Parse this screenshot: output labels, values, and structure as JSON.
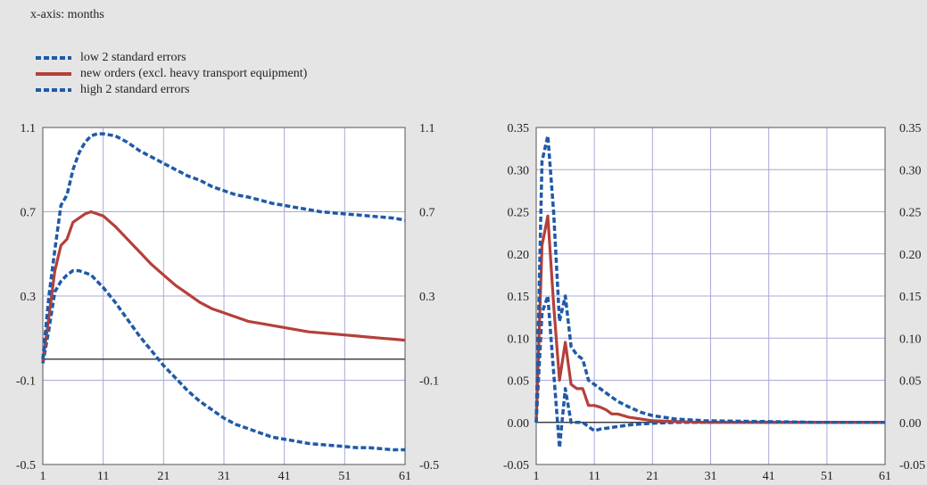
{
  "note": "x-axis: months",
  "legend": [
    {
      "label": "low 2 standard errors",
      "color": "#1f5aa8",
      "style": "dashed"
    },
    {
      "label": "new orders (excl. heavy transport equipment)",
      "color": "#b5403a",
      "style": "solid"
    },
    {
      "label": "high 2 standard errors",
      "color": "#1f5aa8",
      "style": "dashed"
    }
  ],
  "chart_data": [
    {
      "type": "line",
      "xlabel": "",
      "ylabel": "",
      "xlim": [
        1,
        61
      ],
      "ylim": [
        -0.5,
        1.1
      ],
      "xticks": [
        "1",
        "11",
        "21",
        "31",
        "41",
        "51",
        "61"
      ],
      "yticks_left": [
        "1.1",
        "0.7",
        "0.3",
        "-0.1",
        "-0.5"
      ],
      "yticks_right": [
        "1.1",
        "0.7",
        "0.3",
        "-0.1",
        "-0.5"
      ],
      "grid": true,
      "series": [
        {
          "name": "low 2 standard errors",
          "style": "dashed",
          "color": "#1f5aa8",
          "x": [
            1,
            2,
            3,
            4,
            5,
            6,
            7,
            8,
            9,
            10,
            11,
            13,
            15,
            17,
            19,
            21,
            23,
            25,
            27,
            29,
            31,
            33,
            35,
            37,
            39,
            41,
            43,
            45,
            47,
            49,
            51,
            53,
            55,
            57,
            59,
            61
          ],
          "y": [
            -0.02,
            0.14,
            0.32,
            0.37,
            0.4,
            0.42,
            0.42,
            0.41,
            0.4,
            0.37,
            0.34,
            0.27,
            0.19,
            0.11,
            0.04,
            -0.03,
            -0.09,
            -0.15,
            -0.2,
            -0.24,
            -0.28,
            -0.31,
            -0.33,
            -0.35,
            -0.37,
            -0.38,
            -0.39,
            -0.4,
            -0.405,
            -0.41,
            -0.415,
            -0.42,
            -0.42,
            -0.425,
            -0.43,
            -0.43
          ]
        },
        {
          "name": "new orders (excl. heavy transport equipment)",
          "style": "solid",
          "color": "#b5403a",
          "x": [
            1,
            2,
            3,
            4,
            5,
            6,
            7,
            8,
            9,
            10,
            11,
            13,
            15,
            17,
            19,
            21,
            23,
            25,
            27,
            29,
            31,
            33,
            35,
            37,
            39,
            41,
            43,
            45,
            47,
            49,
            51,
            53,
            55,
            57,
            59,
            61
          ],
          "y": [
            -0.01,
            0.2,
            0.42,
            0.54,
            0.57,
            0.65,
            0.67,
            0.69,
            0.7,
            0.69,
            0.68,
            0.63,
            0.57,
            0.51,
            0.45,
            0.4,
            0.35,
            0.31,
            0.27,
            0.24,
            0.22,
            0.2,
            0.18,
            0.17,
            0.16,
            0.15,
            0.14,
            0.13,
            0.125,
            0.12,
            0.115,
            0.11,
            0.105,
            0.1,
            0.095,
            0.09
          ]
        },
        {
          "name": "high 2 standard errors",
          "style": "dashed",
          "color": "#1f5aa8",
          "x": [
            1,
            2,
            3,
            4,
            5,
            6,
            7,
            8,
            9,
            10,
            11,
            13,
            15,
            17,
            19,
            21,
            23,
            25,
            27,
            29,
            31,
            33,
            35,
            37,
            39,
            41,
            43,
            45,
            47,
            49,
            51,
            53,
            55,
            57,
            59,
            61
          ],
          "y": [
            0.0,
            0.3,
            0.52,
            0.73,
            0.78,
            0.9,
            0.98,
            1.03,
            1.06,
            1.07,
            1.07,
            1.06,
            1.03,
            0.99,
            0.96,
            0.93,
            0.9,
            0.87,
            0.85,
            0.82,
            0.8,
            0.78,
            0.77,
            0.755,
            0.74,
            0.73,
            0.72,
            0.71,
            0.7,
            0.695,
            0.69,
            0.685,
            0.68,
            0.675,
            0.67,
            0.66
          ]
        }
      ]
    },
    {
      "type": "line",
      "xlabel": "",
      "ylabel": "",
      "xlim": [
        1,
        61
      ],
      "ylim": [
        -0.05,
        0.35
      ],
      "xticks": [
        "1",
        "11",
        "21",
        "31",
        "41",
        "51",
        "61"
      ],
      "yticks_left": [
        "0.35",
        "0.30",
        "0.25",
        "0.20",
        "0.15",
        "0.10",
        "0.05",
        "0.00",
        "-0.05"
      ],
      "yticks_right": [
        "0.35",
        "0.30",
        "0.25",
        "0.20",
        "0.15",
        "0.10",
        "0.05",
        "0.00",
        "-0.05"
      ],
      "grid": true,
      "series": [
        {
          "name": "low 2 standard errors",
          "style": "dashed",
          "color": "#1f5aa8",
          "x": [
            1,
            2,
            3,
            4,
            5,
            6,
            7,
            8,
            9,
            10,
            11,
            12,
            13,
            15,
            17,
            19,
            21,
            25,
            30,
            40,
            50,
            61
          ],
          "y": [
            0.0,
            0.13,
            0.15,
            0.06,
            -0.03,
            0.04,
            0.0,
            0.0,
            0.0,
            -0.005,
            -0.01,
            -0.008,
            -0.007,
            -0.005,
            -0.003,
            -0.002,
            -0.001,
            0.0,
            0.0,
            0.0,
            0.0,
            0.0
          ]
        },
        {
          "name": "new orders (excl. heavy transport equipment)",
          "style": "solid",
          "color": "#b5403a",
          "x": [
            1,
            2,
            3,
            4,
            5,
            6,
            7,
            8,
            9,
            10,
            11,
            12,
            13,
            14,
            15,
            17,
            19,
            21,
            25,
            30,
            40,
            50,
            61
          ],
          "y": [
            0.0,
            0.21,
            0.245,
            0.14,
            0.05,
            0.095,
            0.045,
            0.04,
            0.04,
            0.02,
            0.02,
            0.018,
            0.015,
            0.01,
            0.01,
            0.006,
            0.004,
            0.002,
            0.001,
            0.0,
            0.0,
            0.0,
            0.0
          ]
        },
        {
          "name": "high 2 standard errors",
          "style": "dashed",
          "color": "#1f5aa8",
          "x": [
            1,
            2,
            3,
            4,
            5,
            6,
            7,
            8,
            9,
            10,
            11,
            12,
            13,
            15,
            17,
            19,
            21,
            25,
            30,
            40,
            50,
            61
          ],
          "y": [
            0.0,
            0.31,
            0.34,
            0.25,
            0.12,
            0.15,
            0.09,
            0.08,
            0.075,
            0.05,
            0.045,
            0.04,
            0.035,
            0.025,
            0.018,
            0.012,
            0.008,
            0.004,
            0.002,
            0.001,
            0.0,
            0.0
          ]
        }
      ]
    }
  ]
}
